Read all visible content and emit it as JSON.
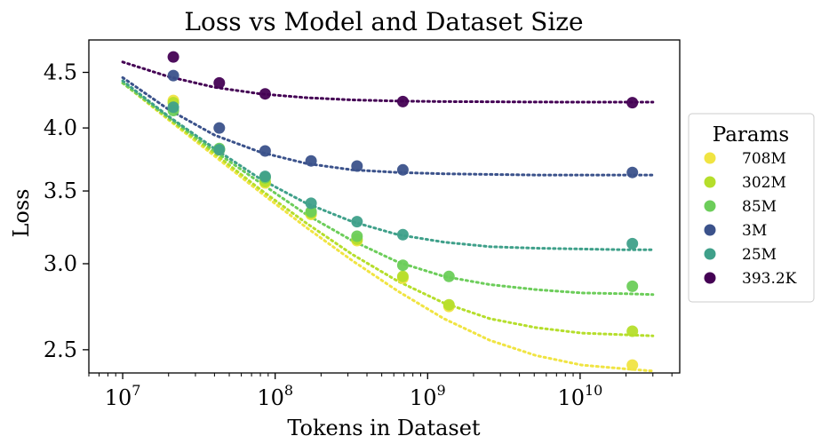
{
  "chart_data": {
    "type": "scatter",
    "title": "Loss vs Model and Dataset Size",
    "xlabel": "Tokens in Dataset",
    "ylabel": "Loss",
    "xscale": "log",
    "yscale": "log",
    "xlim": [
      6000000,
      45000000000
    ],
    "ylim": [
      2.38,
      4.82
    ],
    "x_ticks": [
      10000000,
      100000000,
      1000000000,
      10000000000
    ],
    "x_tick_labels": [
      {
        "base": "10",
        "exp": "7"
      },
      {
        "base": "10",
        "exp": "8"
      },
      {
        "base": "10",
        "exp": "9"
      },
      {
        "base": "10",
        "exp": "10"
      }
    ],
    "y_ticks": [
      2.5,
      3.0,
      3.5,
      4.0,
      4.5
    ],
    "y_tick_labels": [
      "2.5",
      "3.0",
      "3.5",
      "4.0",
      "4.5"
    ],
    "grid": false,
    "legend": {
      "title": "Params",
      "placement": "outside-right"
    },
    "series": [
      {
        "name": "708M",
        "color": "#f0e442",
        "points": [
          [
            21500000,
            4.24
          ],
          [
            43000000,
            3.82
          ],
          [
            86000000,
            3.56
          ],
          [
            172000000,
            3.33
          ],
          [
            344000000,
            3.15
          ],
          [
            688000000,
            2.91
          ],
          [
            1380000000,
            2.74
          ],
          [
            22000000000,
            2.42
          ]
        ],
        "fit_x": [
          10000000,
          20000000,
          40000000,
          80000000,
          160000000,
          320000000,
          640000000,
          1280000000,
          2560000000,
          5120000000,
          10240000000,
          20480000000,
          30000000000
        ],
        "fit_y": [
          4.4,
          4.07,
          3.77,
          3.49,
          3.24,
          3.02,
          2.83,
          2.67,
          2.55,
          2.47,
          2.42,
          2.4,
          2.39
        ]
      },
      {
        "name": "302M",
        "color": "#b5de2b",
        "points": [
          [
            21500000,
            4.22
          ],
          [
            43000000,
            3.82
          ],
          [
            86000000,
            3.57
          ],
          [
            172000000,
            3.34
          ],
          [
            344000000,
            3.16
          ],
          [
            688000000,
            2.92
          ],
          [
            1380000000,
            2.75
          ],
          [
            22000000000,
            2.6
          ]
        ],
        "fit_x": [
          10000000,
          20000000,
          40000000,
          80000000,
          160000000,
          320000000,
          640000000,
          1280000000,
          2560000000,
          5120000000,
          10240000000,
          20480000000,
          30000000000
        ],
        "fit_y": [
          4.4,
          4.08,
          3.79,
          3.51,
          3.27,
          3.06,
          2.89,
          2.76,
          2.67,
          2.62,
          2.59,
          2.58,
          2.575
        ]
      },
      {
        "name": "85M",
        "color": "#6ccd5a",
        "points": [
          [
            21500000,
            4.15
          ],
          [
            43000000,
            3.83
          ],
          [
            86000000,
            3.6
          ],
          [
            172000000,
            3.35
          ],
          [
            344000000,
            3.18
          ],
          [
            688000000,
            2.99
          ],
          [
            1380000000,
            2.92
          ],
          [
            22000000000,
            2.86
          ]
        ],
        "fit_x": [
          10000000,
          20000000,
          40000000,
          80000000,
          160000000,
          320000000,
          640000000,
          1280000000,
          2560000000,
          5120000000,
          10240000000,
          20480000000,
          30000000000
        ],
        "fit_y": [
          4.4,
          4.09,
          3.81,
          3.56,
          3.33,
          3.15,
          3.01,
          2.92,
          2.87,
          2.84,
          2.82,
          2.815,
          2.81
        ]
      },
      {
        "name": "3M",
        "color": "#3b528b",
        "points": [
          [
            21500000,
            4.47
          ],
          [
            43000000,
            4.0
          ],
          [
            86000000,
            3.81
          ],
          [
            172000000,
            3.73
          ],
          [
            344000000,
            3.69
          ],
          [
            688000000,
            3.66
          ],
          [
            22000000000,
            3.64
          ]
        ],
        "fit_x": [
          10000000,
          20000000,
          40000000,
          80000000,
          160000000,
          320000000,
          640000000,
          1280000000,
          2560000000,
          5120000000,
          10240000000,
          20480000000,
          30000000000
        ],
        "fit_y": [
          4.45,
          4.16,
          3.94,
          3.8,
          3.71,
          3.66,
          3.64,
          3.63,
          3.625,
          3.62,
          3.62,
          3.62,
          3.62
        ]
      },
      {
        "name": "25M",
        "color": "#3fa08a",
        "points": [
          [
            21500000,
            4.18
          ],
          [
            43000000,
            3.82
          ],
          [
            86000000,
            3.61
          ],
          [
            172000000,
            3.41
          ],
          [
            344000000,
            3.28
          ],
          [
            688000000,
            3.19
          ],
          [
            22000000000,
            3.13
          ]
        ],
        "fit_x": [
          10000000,
          20000000,
          40000000,
          80000000,
          160000000,
          320000000,
          640000000,
          1280000000,
          2560000000,
          5120000000,
          10240000000,
          20480000000,
          30000000000
        ],
        "fit_y": [
          4.42,
          4.1,
          3.83,
          3.59,
          3.41,
          3.28,
          3.19,
          3.14,
          3.11,
          3.1,
          3.095,
          3.09,
          3.09
        ]
      },
      {
        "name": "393.2K",
        "color": "#440154",
        "points": [
          [
            21500000,
            4.65
          ],
          [
            43000000,
            4.4
          ],
          [
            86000000,
            4.3
          ],
          [
            688000000,
            4.23
          ],
          [
            22000000000,
            4.22
          ]
        ],
        "fit_x": [
          10000000,
          20000000,
          40000000,
          80000000,
          160000000,
          320000000,
          640000000,
          1280000000,
          2560000000,
          5120000000,
          10240000000,
          20480000000,
          30000000000
        ],
        "fit_y": [
          4.6,
          4.46,
          4.36,
          4.3,
          4.265,
          4.245,
          4.235,
          4.23,
          4.228,
          4.226,
          4.225,
          4.225,
          4.225
        ]
      }
    ]
  }
}
